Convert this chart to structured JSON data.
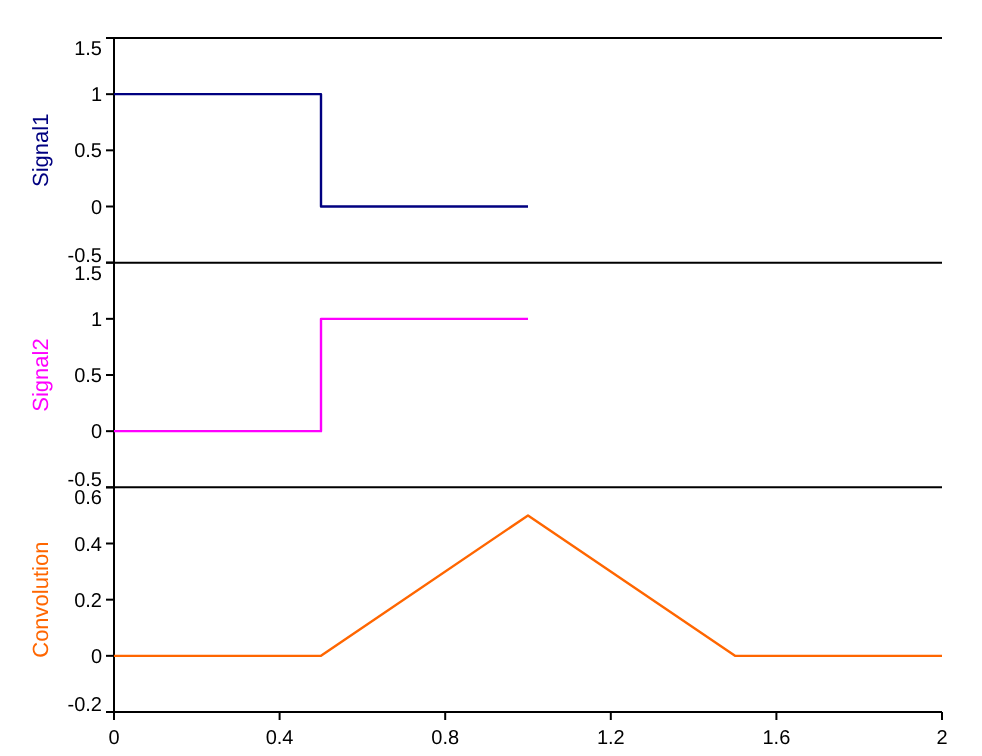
{
  "chart_data": [
    {
      "type": "step",
      "ylabel": "Signal1",
      "xlim": [
        0,
        2
      ],
      "ylim": [
        -0.5,
        1.5
      ],
      "yticks": [
        -0.5,
        0,
        0.5,
        1,
        1.5
      ],
      "tick_labels": "y",
      "grid": false,
      "series": [
        {
          "color": "#000080",
          "x": [
            0,
            0.5,
            1
          ],
          "values": [
            1,
            0,
            0
          ]
        }
      ]
    },
    {
      "type": "step",
      "ylabel": "Signal2",
      "xlim": [
        0,
        2
      ],
      "ylim": [
        -0.5,
        1.5
      ],
      "yticks": [
        -0.5,
        0,
        0.5,
        1,
        1.5
      ],
      "tick_labels": "y",
      "grid": false,
      "series": [
        {
          "color": "#ff00ff",
          "x": [
            0,
            0.5,
            1
          ],
          "values": [
            0,
            1,
            1
          ]
        }
      ]
    },
    {
      "type": "line",
      "ylabel": "Convolution",
      "xlim": [
        0,
        2
      ],
      "xticks": [
        0,
        0.4,
        0.8,
        1.2,
        1.6,
        2
      ],
      "ylim": [
        -0.2,
        0.6
      ],
      "yticks": [
        -0.2,
        0,
        0.2,
        0.4,
        0.6
      ],
      "grid": false,
      "series": [
        {
          "color": "#ff6600",
          "x": [
            0,
            0.5,
            1,
            1.5,
            2
          ],
          "values": [
            0,
            0,
            0.5,
            0,
            0
          ]
        }
      ]
    }
  ]
}
